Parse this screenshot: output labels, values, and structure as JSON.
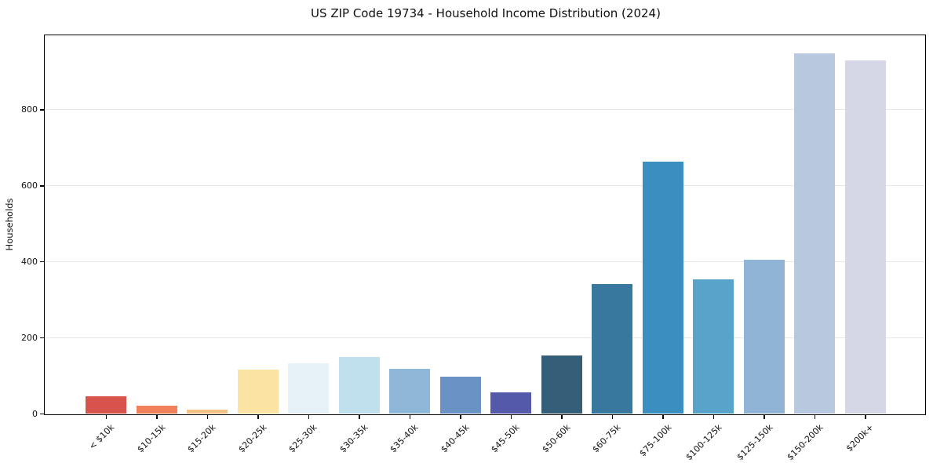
{
  "chart_data": {
    "type": "bar",
    "title": "US ZIP Code 19734 - Household Income Distribution (2024)",
    "xlabel": "",
    "ylabel": "Households",
    "ylim": [
      0,
      995
    ],
    "yticks": [
      0,
      200,
      400,
      600,
      800
    ],
    "grid": true,
    "legend": "none",
    "categories": [
      "< $10k",
      "$10-15k",
      "$15-20k",
      "$20-25k",
      "$25-30k",
      "$30-35k",
      "$35-40k",
      "$40-45k",
      "$45-50k",
      "$50-60k",
      "$60-75k",
      "$75-100k",
      "$100-125k",
      "$125-150k",
      "$150-200k",
      "$200k+"
    ],
    "values": [
      45,
      20,
      10,
      115,
      133,
      148,
      117,
      97,
      55,
      153,
      340,
      663,
      354,
      404,
      948,
      928
    ],
    "bar_colors": [
      "#d9534d",
      "#f0815a",
      "#f5c286",
      "#fbe3a3",
      "#e6f1f8",
      "#c0e0ed",
      "#8fb8d8",
      "#6b92c4",
      "#5459a9",
      "#355f78",
      "#39789e",
      "#3a8ec0",
      "#57a3c9",
      "#8fb4d6",
      "#b7c8df",
      "#d6d7e6"
    ],
    "frame_color": "#000000",
    "gridline_color": "#e7e7ea",
    "background_color": "#ffffff"
  }
}
